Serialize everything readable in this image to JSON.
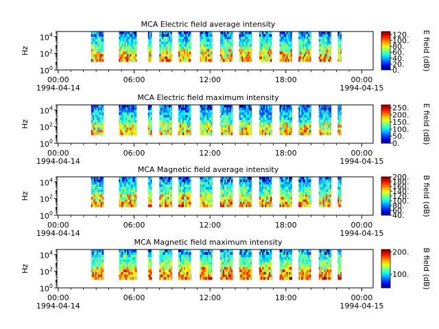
{
  "chart_data": [
    {
      "type": "heatmap",
      "title": "MCA  Electric field average intensity",
      "ylabel": "Hz",
      "y_scale": "log",
      "ylim": [
        1,
        40000
      ],
      "y_ticks": [
        {
          "value": 1,
          "base": "10",
          "exp": "0"
        },
        {
          "value": 100,
          "base": "10",
          "exp": "2"
        },
        {
          "value": 10000,
          "base": "10",
          "exp": "4"
        }
      ],
      "x_ticks": [
        {
          "label": "00:00",
          "sublabel": "1994-04-14",
          "hour": 0
        },
        {
          "label": "06:00",
          "sublabel": "",
          "hour": 6
        },
        {
          "label": "12:00",
          "sublabel": "",
          "hour": 12
        },
        {
          "label": "18:00",
          "sublabel": "",
          "hour": 18
        },
        {
          "label": "00:00",
          "sublabel": "1994-04-15",
          "hour": 24
        }
      ],
      "xlim_hours": [
        -0.1,
        24.9
      ],
      "colorbar": {
        "label": "E field (dB)",
        "min": 0,
        "max": 130,
        "ticks": [
          "0.",
          "20.",
          "40.",
          "60.",
          "80.",
          "100.",
          "120."
        ],
        "tick_values": [
          0,
          20,
          40,
          60,
          80,
          100,
          120
        ]
      },
      "base_level": 0.45,
      "data_coverage_hours": [
        [
          2.6,
          3.6
        ],
        [
          4.8,
          6.2
        ],
        [
          7.1,
          7.4
        ],
        [
          8.0,
          9.0
        ],
        [
          9.5,
          10.5
        ],
        [
          11.2,
          12.2
        ],
        [
          12.8,
          13.8
        ],
        [
          14.3,
          15.3
        ],
        [
          15.9,
          16.9
        ],
        [
          17.5,
          18.5
        ],
        [
          19.0,
          20.0
        ],
        [
          20.6,
          21.6
        ],
        [
          22.1,
          22.4
        ]
      ]
    },
    {
      "type": "heatmap",
      "title": "MCA  Electric field maximum intensity",
      "ylabel": "Hz",
      "y_scale": "log",
      "ylim": [
        1,
        40000
      ],
      "y_ticks": [
        {
          "value": 1,
          "base": "10",
          "exp": "0"
        },
        {
          "value": 100,
          "base": "10",
          "exp": "2"
        },
        {
          "value": 10000,
          "base": "10",
          "exp": "4"
        }
      ],
      "x_ticks": [
        {
          "label": "00:00",
          "sublabel": "1994-04-14",
          "hour": 0
        },
        {
          "label": "06:00",
          "sublabel": "",
          "hour": 6
        },
        {
          "label": "12:00",
          "sublabel": "",
          "hour": 12
        },
        {
          "label": "18:00",
          "sublabel": "",
          "hour": 18
        },
        {
          "label": "00:00",
          "sublabel": "1994-04-15",
          "hour": 24
        }
      ],
      "xlim_hours": [
        -0.1,
        24.9
      ],
      "colorbar": {
        "label": "E field (dB)",
        "min": 0,
        "max": 270,
        "ticks": [
          "0.",
          "50.",
          "100.",
          "150.",
          "200.",
          "250."
        ],
        "tick_values": [
          0,
          50,
          100,
          150,
          200,
          250
        ]
      },
      "base_level": 0.4,
      "data_coverage_hours": [
        [
          2.6,
          3.6
        ],
        [
          4.8,
          6.2
        ],
        [
          7.1,
          7.4
        ],
        [
          8.0,
          9.0
        ],
        [
          9.5,
          10.5
        ],
        [
          11.2,
          12.2
        ],
        [
          12.8,
          13.8
        ],
        [
          14.3,
          15.3
        ],
        [
          15.9,
          16.9
        ],
        [
          17.5,
          18.5
        ],
        [
          19.0,
          20.0
        ],
        [
          20.6,
          21.6
        ],
        [
          22.1,
          22.4
        ]
      ]
    },
    {
      "type": "heatmap",
      "title": "MCA  Magnetic field average intensity",
      "ylabel": "Hz",
      "y_scale": "log",
      "ylim": [
        1,
        40000
      ],
      "y_ticks": [
        {
          "value": 1,
          "base": "10",
          "exp": "0"
        },
        {
          "value": 100,
          "base": "10",
          "exp": "2"
        },
        {
          "value": 10000,
          "base": "10",
          "exp": "4"
        }
      ],
      "x_ticks": [
        {
          "label": "00:00",
          "sublabel": "1994-04-14",
          "hour": 0
        },
        {
          "label": "06:00",
          "sublabel": "",
          "hour": 6
        },
        {
          "label": "12:00",
          "sublabel": "",
          "hour": 12
        },
        {
          "label": "18:00",
          "sublabel": "",
          "hour": 18
        },
        {
          "label": "00:00",
          "sublabel": "1994-04-15",
          "hour": 24
        }
      ],
      "xlim_hours": [
        -0.1,
        24.9
      ],
      "colorbar": {
        "label": "B field (dB)",
        "min": 40,
        "max": 200,
        "ticks": [
          "40.",
          "60.",
          "80.",
          "100.",
          "120.",
          "140.",
          "160.",
          "180.",
          "200."
        ],
        "tick_values": [
          40,
          60,
          80,
          100,
          120,
          140,
          160,
          180,
          200
        ]
      },
      "base_level": 0.45,
      "data_coverage_hours": [
        [
          2.6,
          3.6
        ],
        [
          4.8,
          6.2
        ],
        [
          7.1,
          7.4
        ],
        [
          8.0,
          9.0
        ],
        [
          9.5,
          10.5
        ],
        [
          11.2,
          12.2
        ],
        [
          12.8,
          13.8
        ],
        [
          14.3,
          15.3
        ],
        [
          15.9,
          16.9
        ],
        [
          17.5,
          18.5
        ],
        [
          19.0,
          20.0
        ],
        [
          20.6,
          21.6
        ],
        [
          22.1,
          22.4
        ]
      ]
    },
    {
      "type": "heatmap",
      "title": "MCA  Magnetic field maximum intensity",
      "ylabel": "Hz",
      "y_scale": "log",
      "ylim": [
        1,
        40000
      ],
      "y_ticks": [
        {
          "value": 1,
          "base": "10",
          "exp": "0"
        },
        {
          "value": 100,
          "base": "10",
          "exp": "2"
        },
        {
          "value": 10000,
          "base": "10",
          "exp": "4"
        }
      ],
      "x_ticks": [
        {
          "label": "00:00",
          "sublabel": "1994-04-14",
          "hour": 0
        },
        {
          "label": "06:00",
          "sublabel": "",
          "hour": 6
        },
        {
          "label": "12:00",
          "sublabel": "",
          "hour": 12
        },
        {
          "label": "18:00",
          "sublabel": "",
          "hour": 18
        },
        {
          "label": "00:00",
          "sublabel": "1994-04-15",
          "hour": 24
        }
      ],
      "xlim_hours": [
        -0.1,
        24.9
      ],
      "colorbar": {
        "label": "B field (dB)",
        "min": 40,
        "max": 210,
        "ticks": [
          "100.",
          "200."
        ],
        "tick_values": [
          100,
          200
        ]
      },
      "base_level": 0.5,
      "data_coverage_hours": [
        [
          2.6,
          3.6
        ],
        [
          4.8,
          6.2
        ],
        [
          7.1,
          7.4
        ],
        [
          8.0,
          9.0
        ],
        [
          9.5,
          10.5
        ],
        [
          11.2,
          12.2
        ],
        [
          12.8,
          13.8
        ],
        [
          14.3,
          15.3
        ],
        [
          15.9,
          16.9
        ],
        [
          17.5,
          18.5
        ],
        [
          19.0,
          20.0
        ],
        [
          20.6,
          21.6
        ],
        [
          22.1,
          22.4
        ]
      ]
    }
  ]
}
